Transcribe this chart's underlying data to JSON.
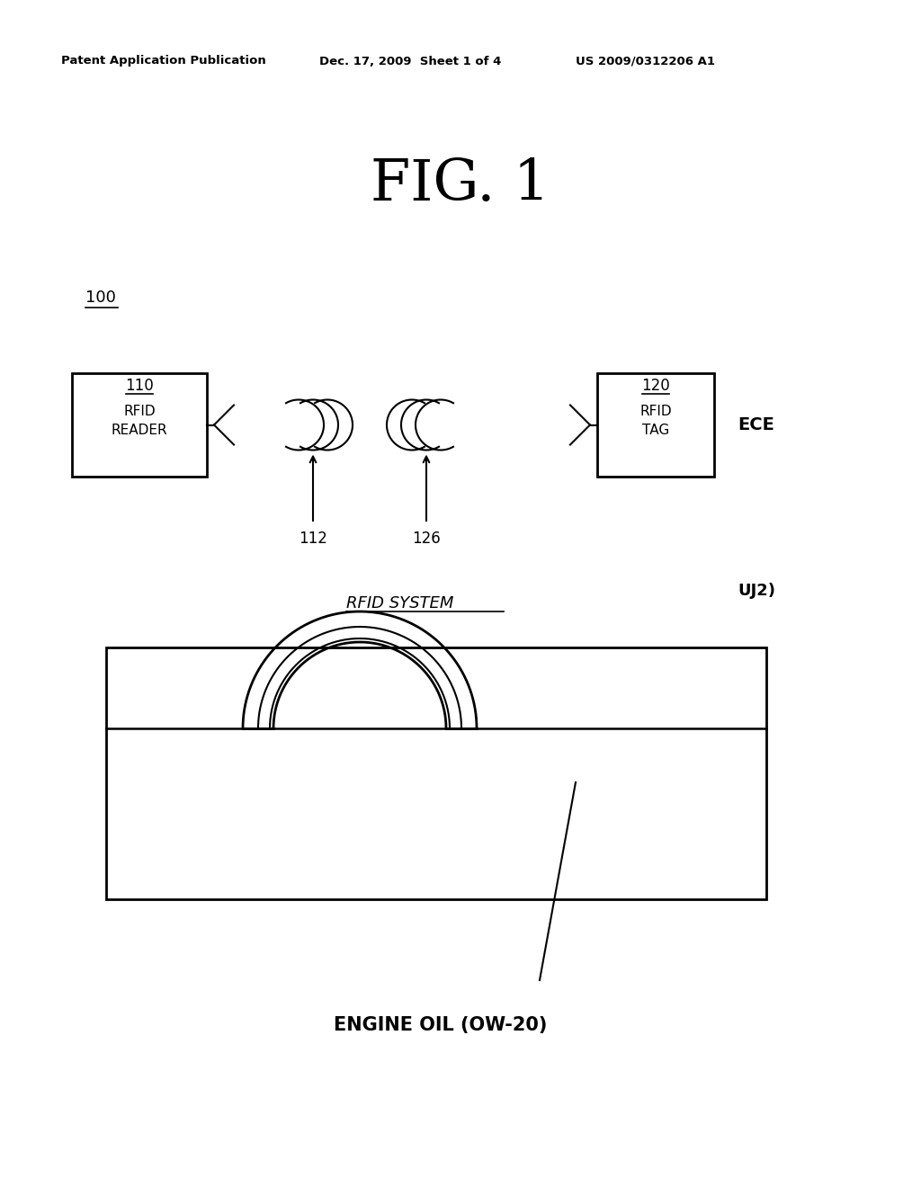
{
  "bg_color": "#ffffff",
  "header_left": "Patent Application Publication",
  "header_mid": "Dec. 17, 2009  Sheet 1 of 4",
  "header_right": "US 2009/0312206 A1",
  "fig_title": "FIG. 1",
  "label_100": "100",
  "label_110": "110",
  "label_rfid_reader": "RFID\nREADER",
  "label_120": "120",
  "label_rfid_tag": "RFID\nTAG",
  "label_ece": "ECE",
  "label_uj2": "UJ2)",
  "label_112": "112",
  "label_126": "126",
  "label_rfid_system": "RFID SYSTEM",
  "label_engine_oil": "ENGINE OIL (OW-20)"
}
